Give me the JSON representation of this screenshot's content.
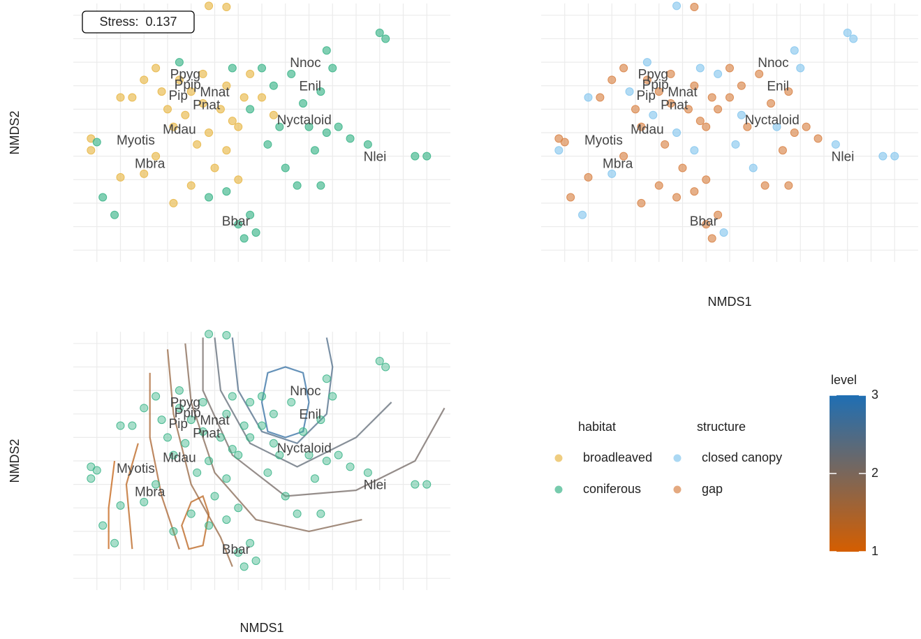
{
  "chart_data": [
    {
      "type": "scatter",
      "ylabel": "NMDS2",
      "legend_title": "habitat",
      "xlim": [
        -1.6,
        1.6
      ],
      "ylim": [
        -1.1,
        1.1
      ],
      "xgrid": [
        -1.4,
        -1.2,
        -1.0,
        -0.8,
        -0.6,
        -0.4,
        -0.2,
        0.0,
        0.2,
        0.4,
        0.6,
        0.8,
        1.0,
        1.2,
        1.4
      ],
      "ygrid": [
        -1.0,
        -0.8,
        -0.6,
        -0.4,
        -0.2,
        0.0,
        0.2,
        0.4,
        0.6,
        0.8,
        1.0
      ],
      "annotations": [
        {
          "text": "Stress:  0.137"
        }
      ],
      "series": [
        {
          "name": "broadleaved",
          "color": "#e8b84a",
          "x": [
            -1.45,
            -1.45,
            -1.2,
            -1.1,
            -1.0,
            -0.9,
            -0.85,
            -0.8,
            -0.75,
            -0.7,
            -0.65,
            -0.6,
            -0.55,
            -0.5,
            -0.5,
            -0.45,
            -0.4,
            -0.35,
            -0.3,
            -0.3,
            -0.25,
            -0.2,
            -0.15,
            -0.1,
            -0.6,
            -0.9,
            -1.0,
            -1.2,
            -0.45,
            -0.3,
            0.0,
            0.1,
            -0.75,
            -0.2
          ],
          "y": [
            -0.05,
            -0.15,
            0.3,
            0.3,
            0.45,
            0.55,
            0.35,
            0.2,
            0.05,
            0.45,
            0.15,
            0.35,
            -0.1,
            0.25,
            0.5,
            0.0,
            -0.3,
            0.2,
            0.4,
            -0.15,
            0.1,
            0.05,
            0.3,
            0.5,
            -0.45,
            -0.2,
            -0.35,
            -0.38,
            1.08,
            1.07,
            0.3,
            0.15,
            -0.6,
            -0.4
          ]
        },
        {
          "name": "coniferous",
          "color": "#3db58a",
          "x": [
            -1.4,
            -1.35,
            -1.25,
            -0.7,
            -0.3,
            -0.25,
            -0.1,
            0.0,
            0.05,
            0.1,
            0.15,
            0.2,
            0.25,
            0.3,
            0.35,
            0.4,
            0.45,
            0.5,
            0.55,
            0.6,
            0.65,
            0.75,
            0.9,
            1.0,
            1.05,
            1.3,
            1.4,
            -0.1,
            -0.05,
            -0.15,
            -0.2,
            0.5,
            0.55,
            -0.45
          ],
          "y": [
            -0.08,
            -0.55,
            -0.7,
            0.6,
            -0.5,
            0.55,
            0.2,
            0.55,
            -0.1,
            0.4,
            0.05,
            -0.3,
            0.5,
            -0.45,
            0.25,
            0.05,
            -0.15,
            0.35,
            0.0,
            0.55,
            0.05,
            -0.05,
            -0.1,
            0.85,
            0.8,
            -0.2,
            -0.2,
            -0.7,
            -0.85,
            -0.9,
            -0.78,
            -0.45,
            0.7,
            -0.55
          ]
        }
      ],
      "labels": [
        {
          "text": "Nnoc",
          "x": 0.37,
          "y": 0.59
        },
        {
          "text": "Ppyg",
          "x": -0.65,
          "y": 0.49
        },
        {
          "text": "Enil",
          "x": 0.41,
          "y": 0.39
        },
        {
          "text": "Ppip",
          "x": -0.63,
          "y": 0.4
        },
        {
          "text": "Mnat",
          "x": -0.4,
          "y": 0.34
        },
        {
          "text": "Pip",
          "x": -0.71,
          "y": 0.31
        },
        {
          "text": "Pnat",
          "x": -0.47,
          "y": 0.23
        },
        {
          "text": "Nyctaloid",
          "x": 0.36,
          "y": 0.1
        },
        {
          "text": "Mdau",
          "x": -0.7,
          "y": 0.02
        },
        {
          "text": "Myotis",
          "x": -1.07,
          "y": -0.07
        },
        {
          "text": "Nlei",
          "x": 0.96,
          "y": -0.21
        },
        {
          "text": "Mbra",
          "x": -0.95,
          "y": -0.27
        },
        {
          "text": "Bbar",
          "x": -0.22,
          "y": -0.76
        }
      ]
    },
    {
      "type": "scatter",
      "xlabel": "NMDS1",
      "legend_title": "structure",
      "xlim": [
        -1.6,
        1.6
      ],
      "ylim": [
        -1.1,
        1.1
      ],
      "xgrid": [
        -1.4,
        -1.2,
        -1.0,
        -0.8,
        -0.6,
        -0.4,
        -0.2,
        0.0,
        0.2,
        0.4,
        0.6,
        0.8,
        1.0,
        1.2,
        1.4
      ],
      "ygrid": [
        -1.0,
        -0.8,
        -0.6,
        -0.4,
        -0.2,
        0.0,
        0.2,
        0.4,
        0.6,
        0.8,
        1.0
      ],
      "series": [
        {
          "name": "closed canopy",
          "color": "#88c8ee",
          "x": [
            -1.45,
            -1.2,
            -0.85,
            -0.65,
            -0.45,
            -0.3,
            -0.1,
            -1.0,
            -0.45,
            0.1,
            -1.25,
            -0.7,
            -0.25,
            0.05,
            0.2,
            0.4,
            0.6,
            0.9,
            1.0,
            1.05,
            1.3,
            1.4,
            -0.05,
            0.55
          ],
          "y": [
            -0.15,
            0.3,
            0.35,
            0.15,
            0.0,
            -0.15,
            0.5,
            -0.35,
            1.08,
            0.15,
            -0.7,
            0.6,
            0.55,
            -0.1,
            -0.3,
            0.05,
            0.55,
            -0.1,
            0.85,
            0.8,
            -0.2,
            -0.2,
            -0.85,
            0.7
          ]
        },
        {
          "name": "gap",
          "color": "#d9854a",
          "x": [
            -1.45,
            -1.1,
            -1.0,
            -0.9,
            -0.8,
            -0.75,
            -0.7,
            -0.6,
            -0.55,
            -0.5,
            -0.5,
            -0.4,
            -0.35,
            -0.3,
            -0.25,
            -0.2,
            -0.15,
            -0.6,
            -0.9,
            -1.2,
            -0.3,
            0.0,
            -0.75,
            -0.2,
            -1.4,
            -1.35,
            -0.3,
            -0.1,
            0.0,
            0.1,
            0.15,
            0.25,
            0.3,
            0.35,
            0.45,
            0.5,
            0.55,
            0.65,
            0.75,
            -0.1,
            -0.15,
            -0.2,
            0.5,
            -0.45
          ],
          "y": [
            -0.05,
            0.3,
            0.45,
            0.55,
            0.2,
            0.05,
            0.45,
            0.35,
            -0.1,
            0.25,
            0.5,
            -0.3,
            0.2,
            0.4,
            0.1,
            0.05,
            0.3,
            -0.45,
            -0.2,
            -0.38,
            1.07,
            0.3,
            -0.6,
            -0.4,
            -0.08,
            -0.55,
            -0.5,
            0.2,
            0.55,
            0.4,
            0.05,
            0.5,
            -0.45,
            0.25,
            -0.15,
            0.35,
            0.0,
            0.05,
            -0.05,
            -0.7,
            -0.9,
            -0.78,
            -0.45,
            -0.55
          ]
        }
      ],
      "labels": [
        {
          "text": "Nnoc",
          "x": 0.37,
          "y": 0.59
        },
        {
          "text": "Ppyg",
          "x": -0.65,
          "y": 0.49
        },
        {
          "text": "Enil",
          "x": 0.41,
          "y": 0.39
        },
        {
          "text": "Ppip",
          "x": -0.63,
          "y": 0.4
        },
        {
          "text": "Mnat",
          "x": -0.4,
          "y": 0.34
        },
        {
          "text": "Pip",
          "x": -0.71,
          "y": 0.31
        },
        {
          "text": "Pnat",
          "x": -0.47,
          "y": 0.23
        },
        {
          "text": "Nyctaloid",
          "x": 0.36,
          "y": 0.1
        },
        {
          "text": "Mdau",
          "x": -0.7,
          "y": 0.02
        },
        {
          "text": "Myotis",
          "x": -1.07,
          "y": -0.07
        },
        {
          "text": "Nlei",
          "x": 0.96,
          "y": -0.21
        },
        {
          "text": "Mbra",
          "x": -0.95,
          "y": -0.27
        },
        {
          "text": "Bbar",
          "x": -0.22,
          "y": -0.76
        }
      ]
    },
    {
      "type": "scatter",
      "xlabel": "NMDS1",
      "ylabel": "NMDS2",
      "xlim": [
        -1.6,
        1.6
      ],
      "ylim": [
        -1.1,
        1.1
      ],
      "xgrid": [
        -1.4,
        -1.2,
        -1.0,
        -0.8,
        -0.6,
        -0.4,
        -0.2,
        0.0,
        0.2,
        0.4,
        0.6,
        0.8,
        1.0,
        1.2,
        1.4
      ],
      "ygrid": [
        -1.0,
        -0.8,
        -0.6,
        -0.4,
        -0.2,
        0.0,
        0.2,
        0.4,
        0.6,
        0.8,
        1.0
      ],
      "series": [
        {
          "color": "#3db58a",
          "x": [
            -1.45,
            -1.45,
            -1.2,
            -1.1,
            -1.0,
            -0.9,
            -0.85,
            -0.8,
            -0.75,
            -0.7,
            -0.65,
            -0.6,
            -0.55,
            -0.5,
            -0.5,
            -0.45,
            -0.4,
            -0.35,
            -0.3,
            -0.3,
            -0.25,
            -0.2,
            -0.15,
            -0.1,
            -0.6,
            -0.9,
            -1.0,
            -1.2,
            -0.45,
            -0.3,
            0.0,
            0.1,
            -0.75,
            -0.2
          ],
          "y": [
            -0.05,
            -0.15,
            0.3,
            0.3,
            0.45,
            0.55,
            0.35,
            0.2,
            0.05,
            0.45,
            0.15,
            0.35,
            -0.1,
            0.25,
            0.5,
            0.0,
            -0.3,
            0.2,
            0.4,
            -0.15,
            0.1,
            0.05,
            0.3,
            0.5,
            -0.45,
            -0.2,
            -0.35,
            -0.38,
            1.08,
            1.07,
            0.3,
            0.15,
            -0.6,
            -0.4
          ]
        },
        {
          "color": "#3db58a",
          "x": [
            -1.4,
            -1.35,
            -1.25,
            -0.7,
            -0.3,
            -0.25,
            -0.1,
            0.0,
            0.05,
            0.1,
            0.15,
            0.2,
            0.25,
            0.3,
            0.35,
            0.4,
            0.45,
            0.5,
            0.55,
            0.6,
            0.65,
            0.75,
            0.9,
            1.0,
            1.05,
            1.3,
            1.4,
            -0.1,
            -0.05,
            -0.15,
            -0.2,
            0.5,
            0.55,
            -0.45
          ],
          "y": [
            -0.08,
            -0.55,
            -0.7,
            0.6,
            -0.5,
            0.55,
            0.2,
            0.55,
            -0.1,
            0.4,
            0.05,
            -0.3,
            0.5,
            -0.45,
            0.25,
            0.05,
            -0.15,
            0.35,
            0.0,
            0.55,
            0.05,
            -0.05,
            -0.1,
            0.85,
            0.8,
            -0.2,
            -0.2,
            -0.7,
            -0.85,
            -0.9,
            -0.78,
            -0.45,
            0.7,
            -0.55
          ]
        }
      ],
      "contours": [
        {
          "level": 2.8,
          "x": [
            0.4,
            0.35,
            0.2,
            0.05,
            0.0,
            0.05,
            0.2,
            0.35,
            0.4
          ],
          "y": [
            0.5,
            0.75,
            0.8,
            0.75,
            0.5,
            0.25,
            0.2,
            0.25,
            0.5
          ]
        },
        {
          "level": 2.5,
          "x": [
            -0.25,
            -0.2,
            0.0,
            0.3,
            0.55,
            0.6,
            0.55
          ],
          "y": [
            1.05,
            0.6,
            0.25,
            0.15,
            0.4,
            0.8,
            1.05
          ]
        },
        {
          "level": 2.3,
          "x": [
            -0.4,
            -0.35,
            -0.1,
            0.3,
            0.8,
            1.1
          ],
          "y": [
            1.05,
            0.6,
            0.15,
            -0.05,
            0.2,
            0.5
          ]
        },
        {
          "level": 2.1,
          "x": [
            -0.5,
            -0.5,
            -0.25,
            0.2,
            0.8,
            1.3,
            1.55
          ],
          "y": [
            1.05,
            0.6,
            0.05,
            -0.3,
            -0.25,
            0.0,
            0.45
          ]
        },
        {
          "level": 1.9,
          "x": [
            -0.65,
            -0.6,
            -0.4,
            -0.05,
            0.4,
            0.85
          ],
          "y": [
            1.0,
            0.5,
            -0.1,
            -0.5,
            -0.6,
            -0.5
          ]
        },
        {
          "level": 1.7,
          "x": [
            -0.8,
            -0.75,
            -0.6,
            -0.35,
            -0.25
          ],
          "y": [
            0.95,
            0.4,
            -0.2,
            -0.65,
            -0.9
          ]
        },
        {
          "level": 1.5,
          "x": [
            -0.95,
            -0.95,
            -0.85,
            -0.7
          ],
          "y": [
            0.75,
            0.2,
            -0.3,
            -0.75
          ]
        },
        {
          "level": 1.3,
          "x": [
            -0.45,
            -0.5,
            -0.6,
            -0.68,
            -0.62,
            -0.5,
            -0.45
          ],
          "y": [
            -0.45,
            -0.3,
            -0.35,
            -0.55,
            -0.75,
            -0.72,
            -0.45
          ]
        },
        {
          "level": 1.3,
          "x": [
            -1.05,
            -1.15,
            -1.1
          ],
          "y": [
            0.15,
            -0.2,
            -0.75
          ]
        },
        {
          "level": 1.2,
          "x": [
            -1.25,
            -1.3,
            -1.3
          ],
          "y": [
            0.0,
            -0.4,
            -0.75
          ]
        }
      ],
      "labels": [
        {
          "text": "Nnoc",
          "x": 0.37,
          "y": 0.59
        },
        {
          "text": "Ppyg",
          "x": -0.65,
          "y": 0.49
        },
        {
          "text": "Enil",
          "x": 0.41,
          "y": 0.39
        },
        {
          "text": "Ppip",
          "x": -0.63,
          "y": 0.4
        },
        {
          "text": "Mnat",
          "x": -0.4,
          "y": 0.34
        },
        {
          "text": "Pip",
          "x": -0.71,
          "y": 0.31
        },
        {
          "text": "Pnat",
          "x": -0.47,
          "y": 0.23
        },
        {
          "text": "Nyctaloid",
          "x": 0.36,
          "y": 0.1
        },
        {
          "text": "Mdau",
          "x": -0.7,
          "y": 0.02
        },
        {
          "text": "Myotis",
          "x": -1.07,
          "y": -0.07
        },
        {
          "text": "Nlei",
          "x": 0.96,
          "y": -0.21
        },
        {
          "text": "Mbra",
          "x": -0.95,
          "y": -0.27
        },
        {
          "text": "Bbar",
          "x": -0.22,
          "y": -0.76
        }
      ],
      "colorbar": {
        "title": "level",
        "limits": [
          1,
          3
        ],
        "ticks": [
          1,
          2,
          3
        ],
        "colors": [
          "#d55e00",
          "#1f6fb4"
        ]
      }
    }
  ]
}
